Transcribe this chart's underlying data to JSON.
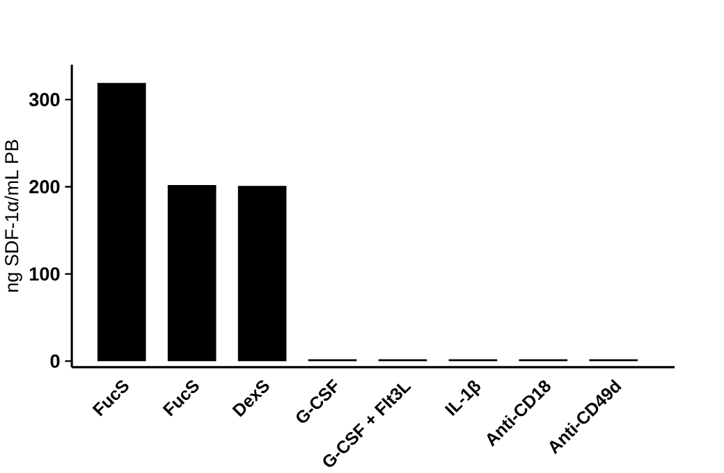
{
  "chart_data": {
    "type": "bar",
    "ylabel": "ng SDF-1α/mL PB",
    "categories": [
      "FucS",
      "FucS",
      "DexS",
      "G-CSF",
      "G-CSF + Flt3L",
      "IL-1β",
      "Anti-CD18",
      "Anti-CD49d"
    ],
    "values": [
      319,
      202,
      201,
      2,
      2,
      2,
      2,
      2
    ],
    "color": "#000000",
    "ylim": [
      -7,
      340
    ],
    "yticks": [
      0,
      100,
      200,
      300
    ]
  }
}
